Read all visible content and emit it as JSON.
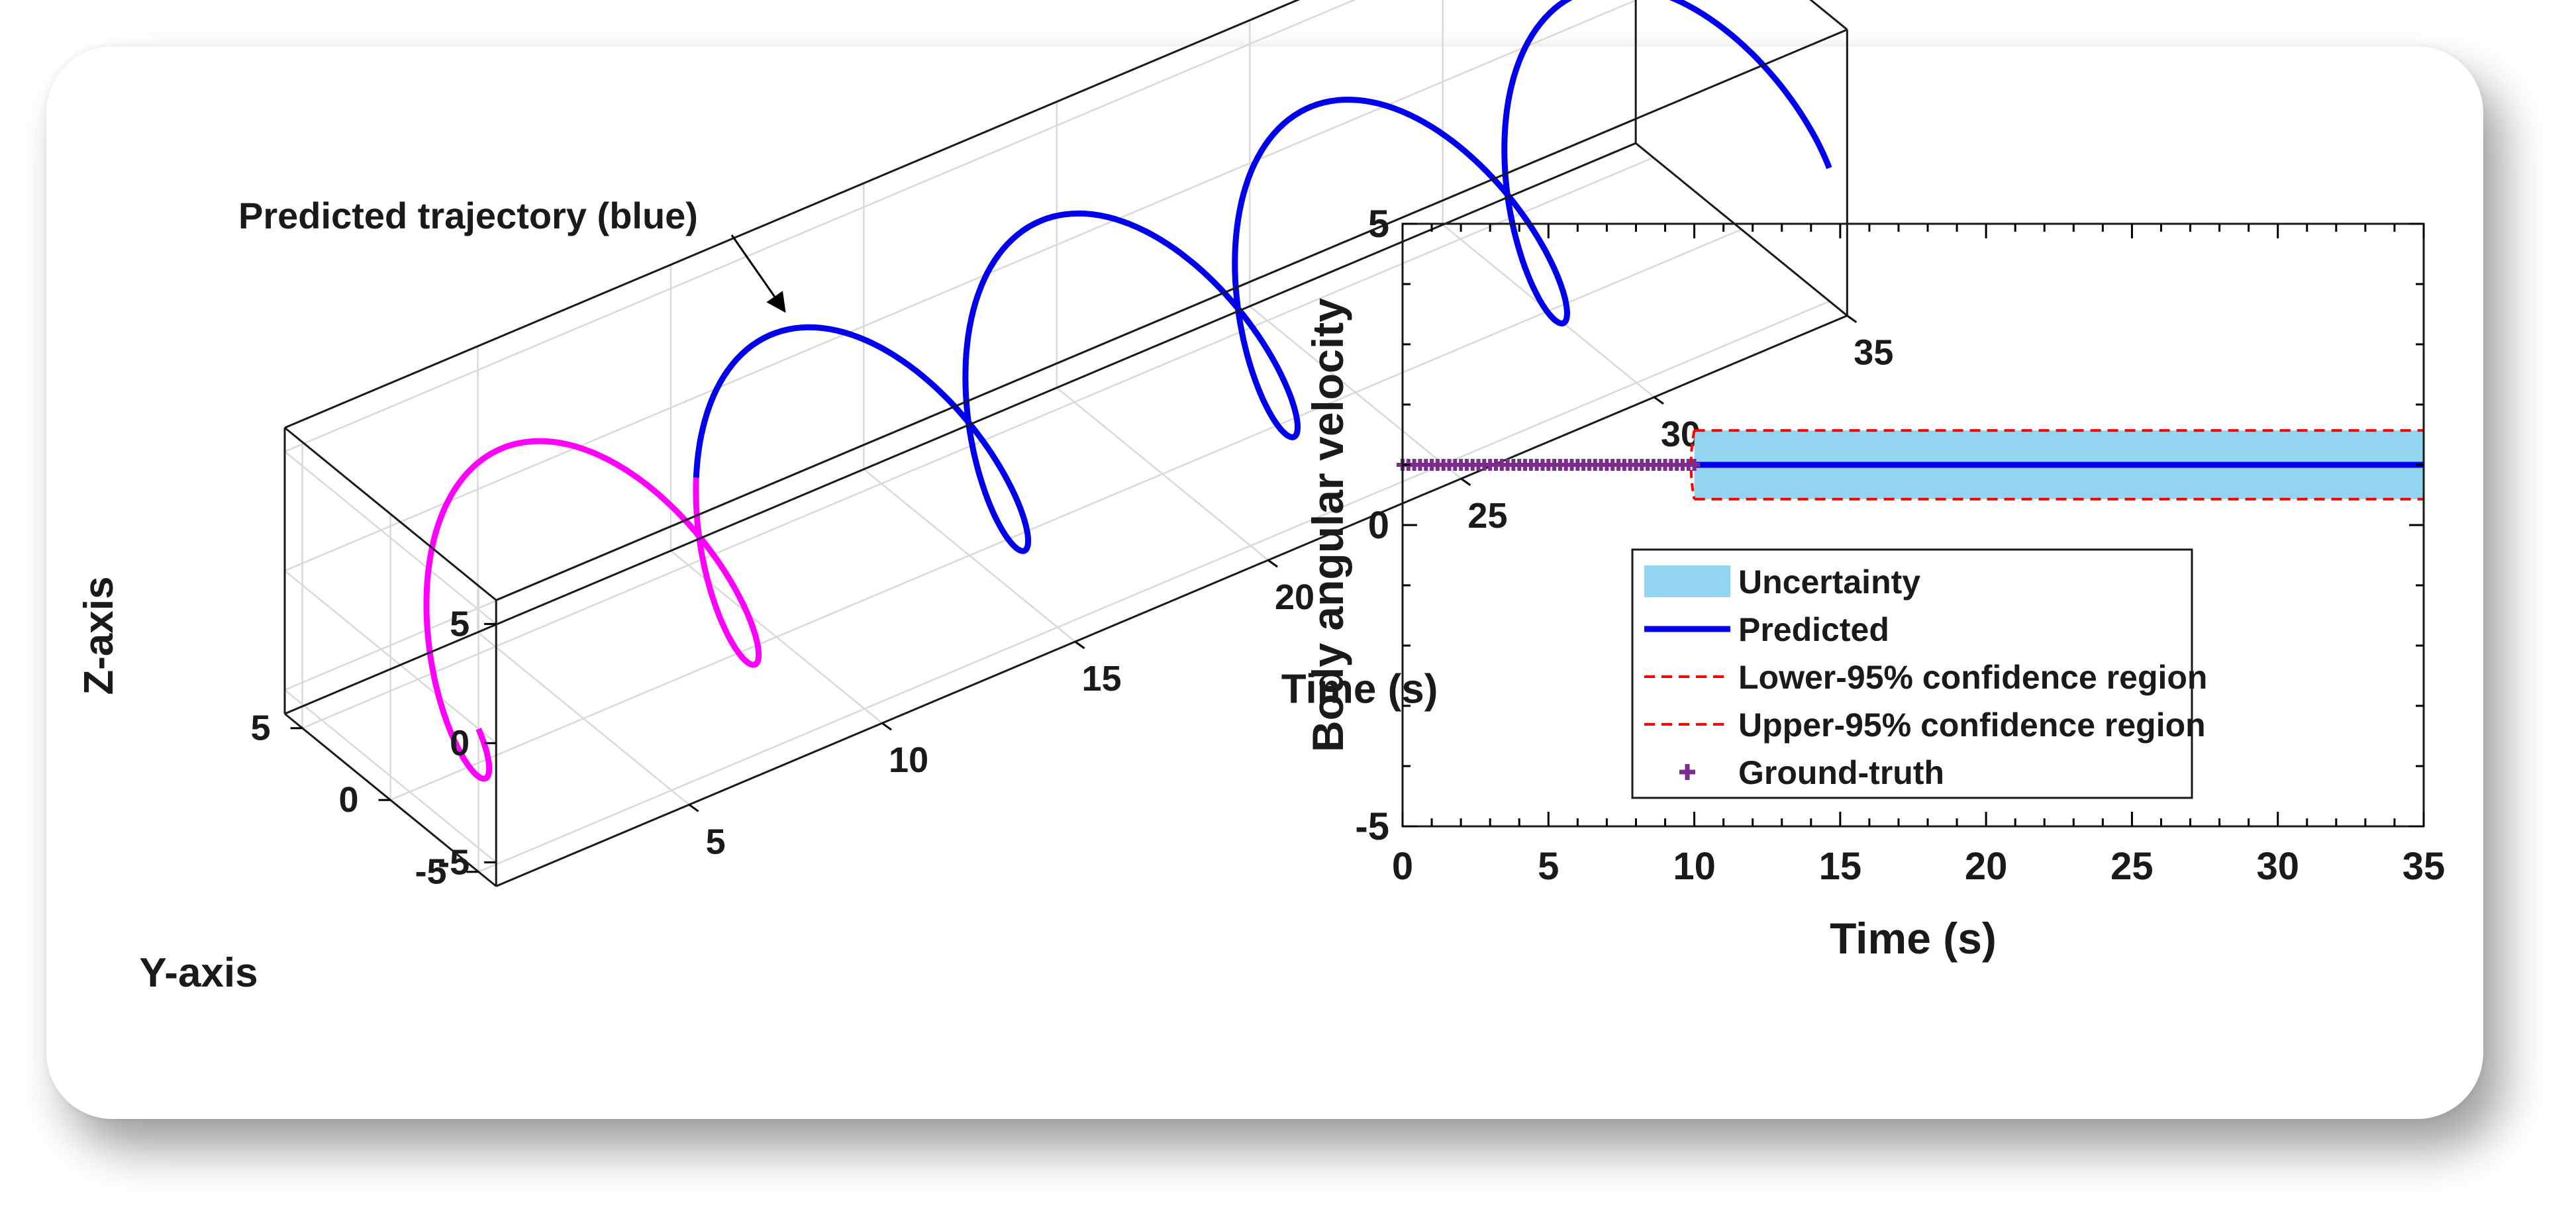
{
  "chart_data": [
    {
      "type": "line",
      "chart": "3d-helix",
      "annotation": "Predicted trajectory (blue)",
      "xlabel": "Time (s)",
      "ylabel": "Y-axis",
      "zlabel": "Z-axis",
      "xlim": [
        0,
        35
      ],
      "ylim": [
        -6,
        6
      ],
      "zlim": [
        -6,
        6
      ],
      "xticks": [
        "5",
        "10",
        "15",
        "20",
        "25",
        "30",
        "35"
      ],
      "yticks": [
        "5",
        "0",
        "-5"
      ],
      "zticks": [
        "5",
        "0",
        "-5"
      ],
      "grid": true,
      "series": [
        {
          "color": "#ff00ff",
          "t_range": [
            0,
            10
          ],
          "radius": 5,
          "angular_velocity": 1
        },
        {
          "color": "#0000ee",
          "t_range": [
            10,
            35
          ],
          "radius": 5,
          "angular_velocity": 1
        }
      ]
    },
    {
      "type": "line",
      "xlabel": "Time (s)",
      "ylabel": "Body angular velocity",
      "xlim": [
        0,
        35
      ],
      "ylim": [
        -5,
        5
      ],
      "xticks": [
        "0",
        "5",
        "10",
        "15",
        "20",
        "25",
        "30",
        "35"
      ],
      "yticks": [
        "5",
        "0",
        "-5"
      ],
      "legend_position": "bottom-center",
      "series": [
        {
          "name": "Uncertainty",
          "kind": "band",
          "x": [
            10,
            35
          ],
          "lower": 0.43,
          "upper": 1.57,
          "color": "#93d5f0"
        },
        {
          "name": "Predicted",
          "kind": "line",
          "x": [
            10,
            35
          ],
          "y": [
            1,
            1
          ],
          "color": "#0000ee"
        },
        {
          "name": "Lower-95% confidence region",
          "kind": "dashed",
          "x": [
            10,
            35
          ],
          "y": [
            0.43,
            0.43
          ],
          "color": "#ff0000"
        },
        {
          "name": "Upper-95% confidence region",
          "kind": "dashed",
          "x": [
            10,
            35
          ],
          "y": [
            1.57,
            1.57
          ],
          "color": "#ff0000"
        },
        {
          "name": "Ground-truth",
          "kind": "markers",
          "x_range": [
            0,
            10
          ],
          "y": 1,
          "color": "#7b2d8e"
        }
      ]
    }
  ]
}
